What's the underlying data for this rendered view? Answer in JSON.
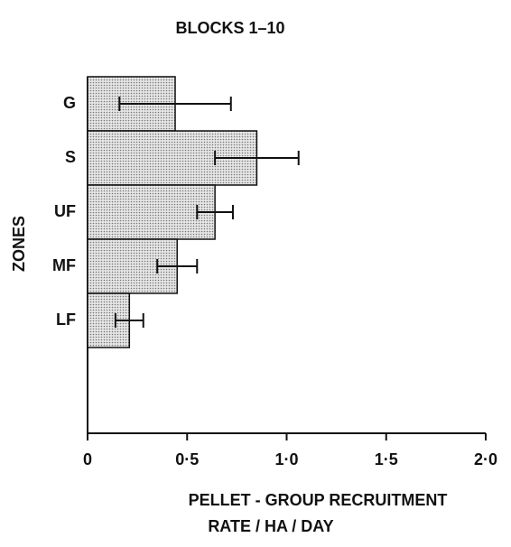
{
  "chart_data": {
    "type": "barh",
    "title": "BLOCKS  1–10",
    "ylabel": "ZONES",
    "xlabel": [
      "PELLET - GROUP  RECRUITMENT",
      "RATE / HA / DAY"
    ],
    "categories": [
      "G",
      "S",
      "UF",
      "MF",
      "LF"
    ],
    "values": [
      0.44,
      0.85,
      0.64,
      0.45,
      0.21
    ],
    "errors": [
      0.28,
      0.21,
      0.09,
      0.1,
      0.07
    ],
    "color": "#d4d4d4",
    "xlim": [
      0,
      2.0
    ],
    "xticks": [
      0,
      {
        "value": 0.5,
        "label": "0·5"
      },
      {
        "value": 1.0,
        "label": "1·0"
      },
      {
        "value": 1.5,
        "label": "1·5"
      },
      {
        "value": 2.0,
        "label": "2·0"
      }
    ],
    "grid": false
  }
}
